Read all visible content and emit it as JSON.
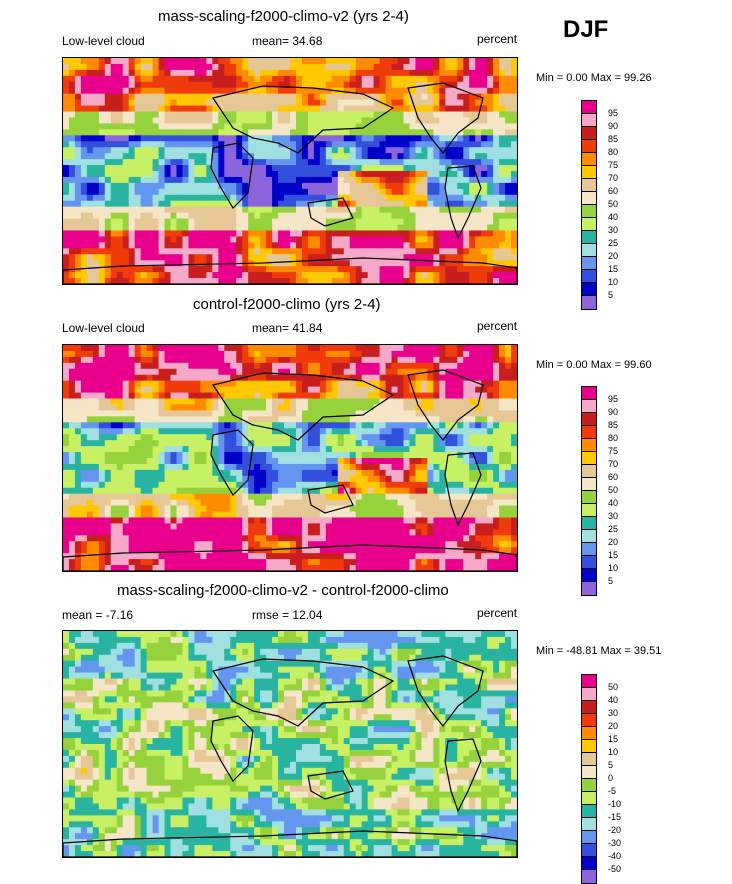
{
  "season": "DJF",
  "panels": [
    {
      "title": "mass-scaling-f2000-climo-v2 (yrs 2-4)",
      "left_label": "Low-level cloud",
      "center_label": "mean=  34.68",
      "right_label": "percent",
      "minmax": "Min =   0.00 Max =  99.26",
      "levels": [
        "95",
        "90",
        "85",
        "80",
        "75",
        "70",
        "60",
        "50",
        "40",
        "30",
        "25",
        "20",
        "15",
        "10",
        "5"
      ],
      "colors": [
        "#e8008c",
        "#f5a8c8",
        "#c81e1e",
        "#f03c0a",
        "#ff8c00",
        "#ffc800",
        "#e6c896",
        "#f5e6c8",
        "#96d23c",
        "#c8f064",
        "#28b4a0",
        "#a0e0e0",
        "#6496f0",
        "#3250dc",
        "#0000c8",
        "#8c64dc"
      ]
    },
    {
      "title": "control-f2000-climo (yrs 2-4)",
      "left_label": "Low-level cloud",
      "center_label": "mean=  41.84",
      "right_label": "percent",
      "minmax": "Min =   0.00 Max =  99.60",
      "levels": [
        "95",
        "90",
        "85",
        "80",
        "75",
        "70",
        "60",
        "50",
        "40",
        "30",
        "25",
        "20",
        "15",
        "10",
        "5"
      ],
      "colors": [
        "#e8008c",
        "#f5a8c8",
        "#c81e1e",
        "#f03c0a",
        "#ff8c00",
        "#ffc800",
        "#e6c896",
        "#f5e6c8",
        "#96d23c",
        "#c8f064",
        "#28b4a0",
        "#a0e0e0",
        "#6496f0",
        "#3250dc",
        "#0000c8",
        "#8c64dc"
      ]
    },
    {
      "title": "mass-scaling-f2000-climo-v2 - control-f2000-climo",
      "left_label": "mean =  -7.16",
      "center_label": "rmse =  12.04",
      "right_label": "percent",
      "minmax": "Min = -48.81 Max =  39.51",
      "levels": [
        "50",
        "40",
        "30",
        "20",
        "15",
        "10",
        "5",
        "0",
        "-5",
        "-10",
        "-15",
        "-20",
        "-30",
        "-40",
        "-50"
      ],
      "colors": [
        "#e8008c",
        "#f5a8c8",
        "#c81e1e",
        "#f03c0a",
        "#ff8c00",
        "#ffc800",
        "#e6c896",
        "#f5e6c8",
        "#96d23c",
        "#c8f064",
        "#28b4a0",
        "#a0e0e0",
        "#6496f0",
        "#3250dc",
        "#0000c8",
        "#8c64dc"
      ]
    }
  ],
  "chart_data": [
    {
      "type": "heatmap",
      "title": "mass-scaling-f2000-climo-v2 (yrs 2-4)",
      "variable": "Low-level cloud",
      "units": "percent",
      "season": "DJF",
      "mean": 34.68,
      "min": 0.0,
      "max": 99.26,
      "contour_levels": [
        5,
        10,
        15,
        20,
        25,
        30,
        40,
        50,
        60,
        70,
        75,
        80,
        85,
        90,
        95
      ]
    },
    {
      "type": "heatmap",
      "title": "control-f2000-climo (yrs 2-4)",
      "variable": "Low-level cloud",
      "units": "percent",
      "season": "DJF",
      "mean": 41.84,
      "min": 0.0,
      "max": 99.6,
      "contour_levels": [
        5,
        10,
        15,
        20,
        25,
        30,
        40,
        50,
        60,
        70,
        75,
        80,
        85,
        90,
        95
      ]
    },
    {
      "type": "heatmap",
      "title": "mass-scaling-f2000-climo-v2 - control-f2000-climo",
      "units": "percent",
      "season": "DJF",
      "mean": -7.16,
      "rmse": 12.04,
      "min": -48.81,
      "max": 39.51,
      "contour_levels": [
        -50,
        -40,
        -30,
        -20,
        -15,
        -10,
        -5,
        0,
        5,
        10,
        15,
        20,
        30,
        40,
        50
      ]
    }
  ]
}
